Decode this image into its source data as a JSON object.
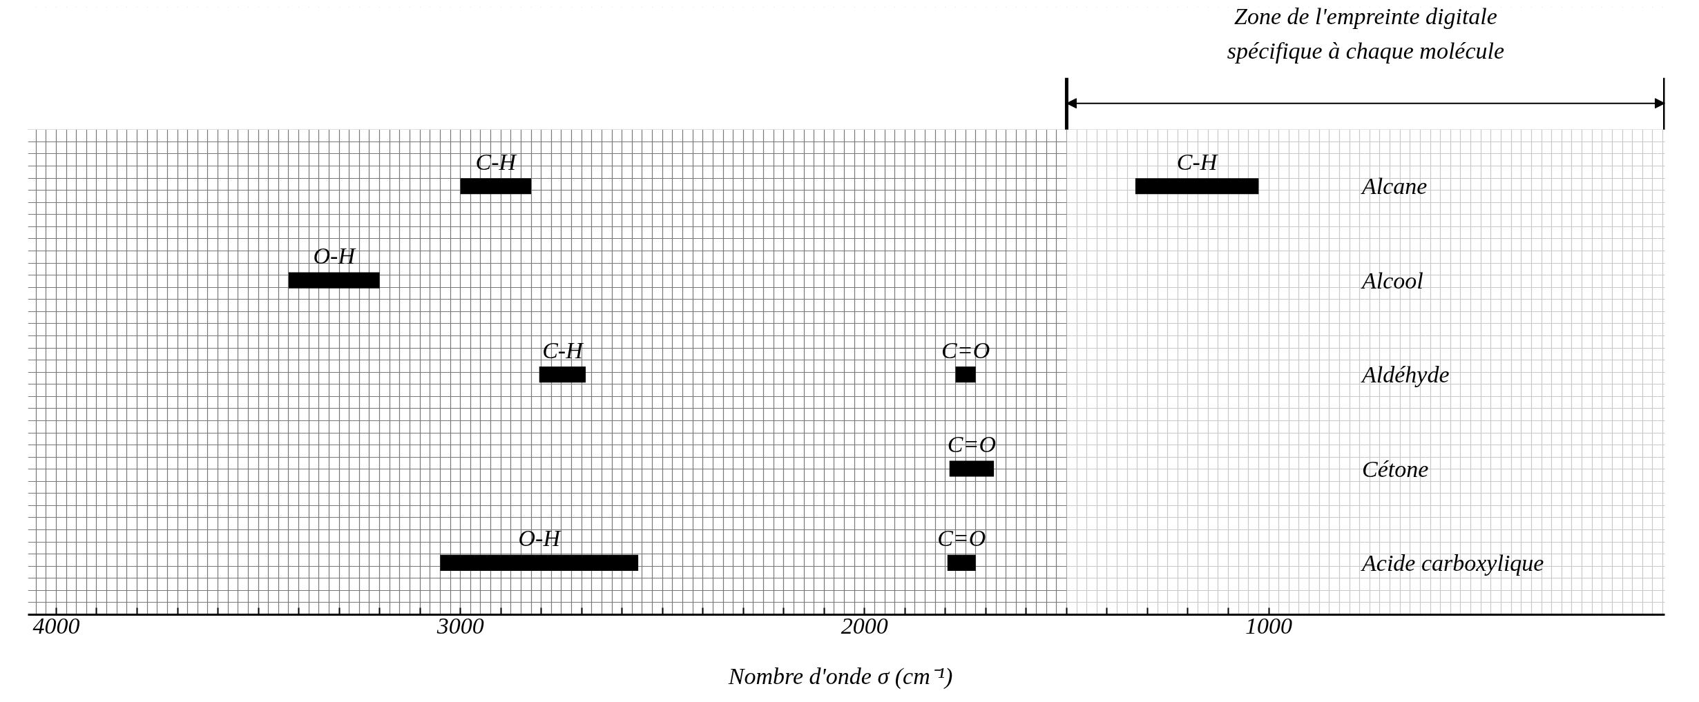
{
  "chart_data": {
    "type": "bar",
    "orientation": "horizontal",
    "categories": [
      "Alcane",
      "Alcool",
      "Aldéhyde",
      "Cétone",
      "Acide carboxylique"
    ],
    "series": [
      {
        "color": "#000000",
        "values": [
          175,
          225,
          115,
          null,
          490
        ],
        "base": [
          2825,
          3200,
          2690,
          null,
          2560
        ],
        "value_labels": [
          "C-H",
          "O-H",
          "C-H",
          null,
          "O-H"
        ]
      },
      {
        "color": "#000000",
        "values": [
          305,
          null,
          50,
          110,
          70
        ],
        "base": [
          1025,
          null,
          1725,
          1680,
          1725
        ],
        "value_labels": [
          "C-H",
          null,
          "C=O",
          "C=O",
          "C=O"
        ]
      }
    ],
    "xlim": [
      4070,
      20
    ],
    "xticks": [
      4000,
      {
        "value": 3900,
        "label": null
      },
      {
        "value": 3800,
        "label": null
      },
      {
        "value": 3700,
        "label": null
      },
      {
        "value": 3600,
        "label": null
      },
      {
        "value": 3500,
        "label": null
      },
      {
        "value": 3400,
        "label": null
      },
      {
        "value": 3300,
        "label": null
      },
      {
        "value": 3200,
        "label": null
      },
      {
        "value": 3100,
        "label": null
      },
      3000,
      {
        "value": 2900,
        "label": null
      },
      {
        "value": 2800,
        "label": null
      },
      {
        "value": 2700,
        "label": null
      },
      {
        "value": 2600,
        "label": null
      },
      {
        "value": 2500,
        "label": null
      },
      {
        "value": 2400,
        "label": null
      },
      {
        "value": 2300,
        "label": null
      },
      {
        "value": 2200,
        "label": null
      },
      {
        "value": 2100,
        "label": null
      },
      2000,
      {
        "value": 1900,
        "label": null
      },
      {
        "value": 1800,
        "label": null
      },
      {
        "value": 1700,
        "label": null
      },
      {
        "value": 1600,
        "label": null
      },
      {
        "value": 1500,
        "label": null
      },
      {
        "value": 1400,
        "label": null
      },
      {
        "value": 1300,
        "label": null
      },
      {
        "value": 1200,
        "label": null
      },
      {
        "value": 1100,
        "label": null
      },
      1000
    ],
    "xlabel": "Nombre d'onde   σ (cm⁻¹)",
    "bands": [
      {
        "axis": "x",
        "from": 1500,
        "to": 20,
        "label": "Zone de l'empreinte digitale\nspécifique à chaque molécule"
      }
    ],
    "grid": true
  }
}
